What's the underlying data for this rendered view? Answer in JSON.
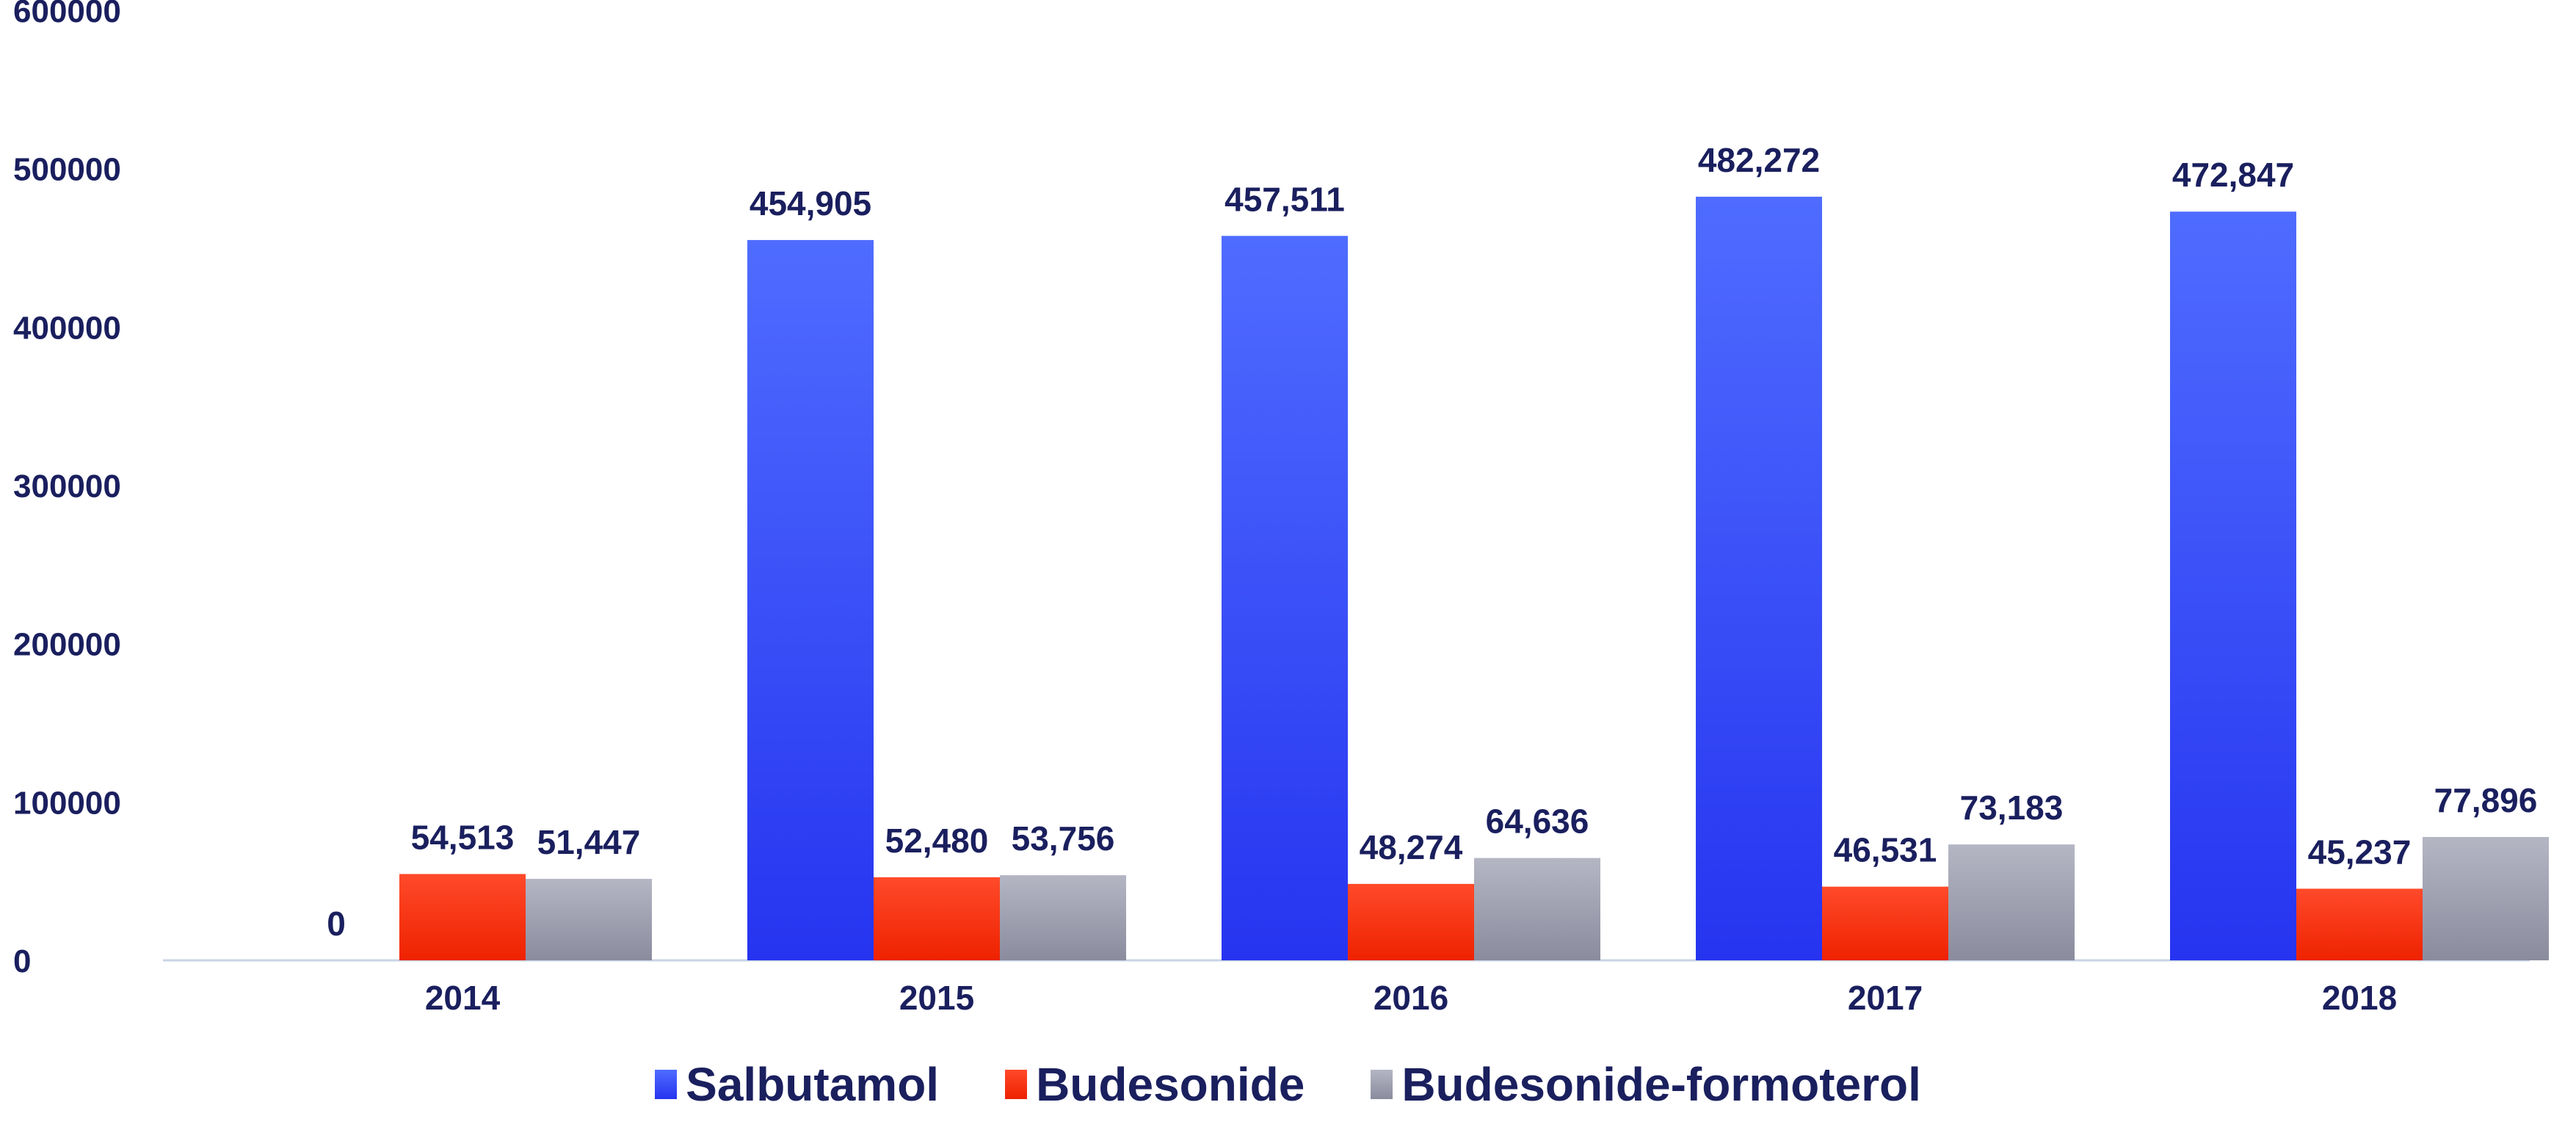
{
  "colors": {
    "text": "#1a1f5e",
    "axis": "#c9d4e6",
    "salbutamol_top": "#4f6cff",
    "salbutamol_bottom": "#2634f0",
    "budesonide_top": "#ff4a2a",
    "budesonide_bottom": "#ee2200",
    "formoterol_top": "#b4b6c4",
    "formoterol_bottom": "#8a8c9e"
  },
  "chart_data": {
    "type": "bar",
    "categories": [
      "2014",
      "2015",
      "2016",
      "2017",
      "2018"
    ],
    "series": [
      {
        "name": "Salbutamol",
        "values": [
          0,
          454905,
          457511,
          482272,
          472847
        ],
        "labels": [
          "0",
          "454,905",
          "457,511",
          "482,272",
          "472,847"
        ]
      },
      {
        "name": "Budesonide",
        "values": [
          54513,
          52480,
          48274,
          46531,
          45237
        ],
        "labels": [
          "54,513",
          "52,480",
          "48,274",
          "46,531",
          "45,237"
        ]
      },
      {
        "name": "Budesonide-formoterol",
        "values": [
          51447,
          53756,
          64636,
          73183,
          77896
        ],
        "labels": [
          "51,447",
          "53,756",
          "64,636",
          "73,183",
          "77,896"
        ]
      }
    ],
    "yticks": [
      "0",
      "100000",
      "200000",
      "300000",
      "400000",
      "500000",
      "600000"
    ],
    "ylim": [
      0,
      600000
    ],
    "grid": false,
    "legend": "bottom"
  }
}
